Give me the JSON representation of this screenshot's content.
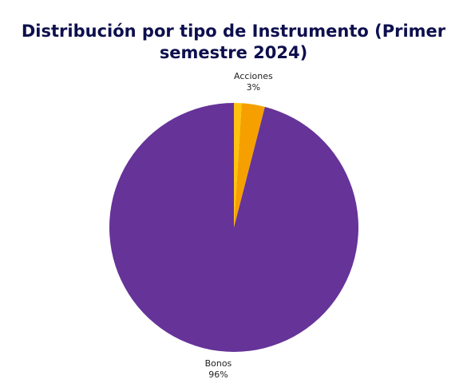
{
  "chart_data": {
    "type": "pie",
    "title": "Distribución por tipo de Instrumento (Primer semestre 2024)",
    "title_lines": [
      "Distribución por tipo de Instrumento (Primer",
      "semestre 2024)"
    ],
    "slices": [
      {
        "name": "Bonos",
        "value": 96,
        "label": "96%",
        "color": "#663399"
      },
      {
        "name": "Acciones",
        "value": 3,
        "label": "3%",
        "color": "#f5a000"
      },
      {
        "name": "",
        "value": 1,
        "label": "",
        "color": "#ffc20e"
      }
    ],
    "start_angle": "top",
    "direction": "counterclockwise"
  }
}
